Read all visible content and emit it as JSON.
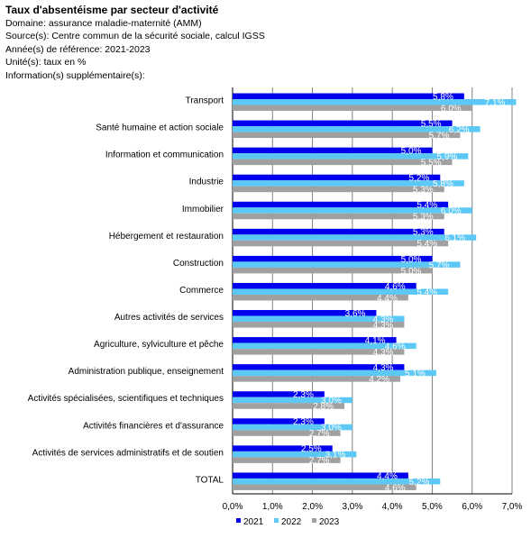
{
  "header": {
    "title": "Taux d'absentéisme par secteur d'activité",
    "domaine": "Domaine: assurance maladie-maternité (AMM)",
    "source": "Source(s): Centre commun de la sécurité sociale, calcul IGSS",
    "annee": "Année(s) de référence: 2021-2023",
    "unite": "Unité(s): taux en %",
    "info": "Information(s) supplémentaire(s):"
  },
  "chart_data": {
    "type": "bar",
    "orientation": "horizontal",
    "categories": [
      "Transport",
      "Santé humaine et action sociale",
      "Information et communication",
      "Industrie",
      "Immobilier",
      "Hébergement et restauration",
      "Construction",
      "Commerce",
      "Autres activités de services",
      "Agriculture, sylviculture et pêche",
      "Administration publique, enseignement",
      "Activités spécialisées, scientifiques et techniques",
      "Activités financières et d'assurance",
      "Activités de services administratifs et de soutien",
      "TOTAL"
    ],
    "series": [
      {
        "name": "2021",
        "color": "#0000ee",
        "values": [
          5.8,
          5.5,
          5.0,
          5.2,
          5.4,
          5.3,
          5.0,
          4.6,
          3.6,
          4.1,
          4.3,
          2.3,
          2.3,
          2.5,
          4.4
        ],
        "labels": [
          "5,8%",
          "5,5%",
          "5,0%",
          "5,2%",
          "5,4%",
          "5,3%",
          "5,0%",
          "4,6%",
          "3,6%",
          "4,1%",
          "4,3%",
          "2,3%",
          "2,3%",
          "2,5%",
          "4,4%"
        ]
      },
      {
        "name": "2022",
        "color": "#5bc8f5",
        "values": [
          7.1,
          6.2,
          5.9,
          5.8,
          6.0,
          6.1,
          5.7,
          5.4,
          4.3,
          4.6,
          5.1,
          3.0,
          3.0,
          3.1,
          5.2
        ],
        "labels": [
          "7,1%",
          "6,2%",
          "5,9%",
          "5,8%",
          "6,0%",
          "6,1%",
          "5,7%",
          "5,4%",
          "4,3%",
          "4,6%",
          "5,1%",
          "3,0%",
          "3,0%",
          "3,1%",
          "5,2%"
        ]
      },
      {
        "name": "2023",
        "color": "#a0a0a0",
        "values": [
          6.0,
          5.7,
          5.5,
          5.3,
          5.3,
          5.4,
          5.0,
          4.4,
          4.3,
          4.3,
          4.2,
          2.8,
          2.7,
          2.7,
          4.6
        ],
        "labels": [
          "6,0%",
          "5,7%",
          "5,5%",
          "5,3%",
          "5,3%",
          "5,4%",
          "5,0%",
          "4,4%",
          "4,3%",
          "4,3%",
          "4,2%",
          "2,8%",
          "2,7%",
          "2,7%",
          "4,6%"
        ]
      }
    ],
    "xlim": [
      0,
      7
    ],
    "xticks": [
      "0,0%",
      "1,0%",
      "2,0%",
      "3,0%",
      "4,0%",
      "5,0%",
      "6,0%",
      "7,0%"
    ],
    "grid": "vertical",
    "legend_position": "bottom"
  }
}
